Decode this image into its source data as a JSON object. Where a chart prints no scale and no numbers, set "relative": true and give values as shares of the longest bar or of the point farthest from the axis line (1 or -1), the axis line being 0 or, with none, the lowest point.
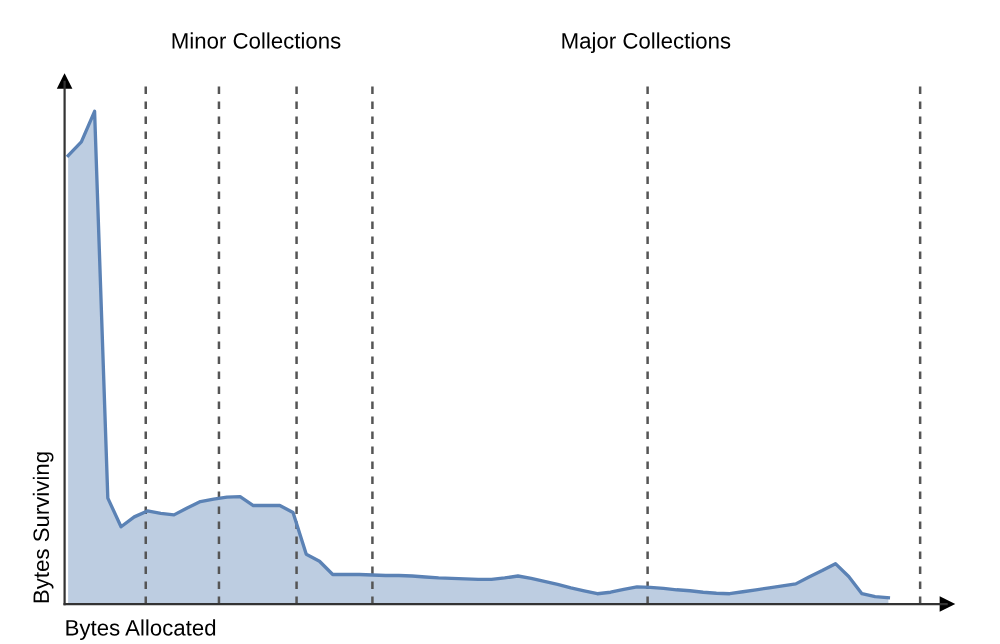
{
  "chart_data": {
    "type": "area",
    "relative": true,
    "xlabel": "Bytes Allocated",
    "ylabel": "Bytes Surviving",
    "categories": [
      null,
      null,
      null,
      null,
      null,
      null,
      null,
      null,
      null,
      null,
      null,
      null,
      null,
      null,
      null,
      null,
      null,
      null,
      null,
      null,
      null,
      null,
      null,
      null,
      null,
      null,
      null,
      null,
      null,
      null,
      null,
      null,
      null,
      null,
      null,
      null,
      null,
      null,
      null,
      null,
      null,
      null,
      null,
      null,
      null,
      null,
      null,
      null,
      null,
      null,
      null,
      null,
      null,
      null,
      null,
      null,
      null,
      null,
      null,
      null,
      null,
      null,
      null
    ],
    "series": [
      {
        "color": "#5b82b5",
        "values": [
          0.91,
          0.938,
          1,
          0.215,
          0.157,
          0.177,
          0.189,
          0.184,
          0.181,
          0.195,
          0.208,
          0.213,
          0.217,
          0.218,
          0.2,
          0.2,
          0.2,
          0.186,
          0.101,
          0.087,
          0.06,
          0.06,
          0.06,
          0.059,
          0.058,
          0.058,
          0.057,
          0.055,
          0.053,
          0.052,
          0.051,
          0.05,
          0.05,
          0.053,
          0.057,
          0.052,
          0.046,
          0.04,
          0.033,
          0.027,
          0.021,
          0.024,
          0.03,
          0.035,
          0.034,
          0.032,
          0.029,
          0.027,
          0.024,
          0.022,
          0.021,
          0.025,
          0.029,
          0.033,
          0.037,
          0.041,
          0.055,
          0.068,
          0.082,
          0.056,
          0.021,
          0.015,
          0.013
        ]
      }
    ],
    "grid": "x",
    "line_style": "dashed",
    "annotations": [
      "Minor Collections",
      "Major Collections"
    ],
    "legend": false
  }
}
